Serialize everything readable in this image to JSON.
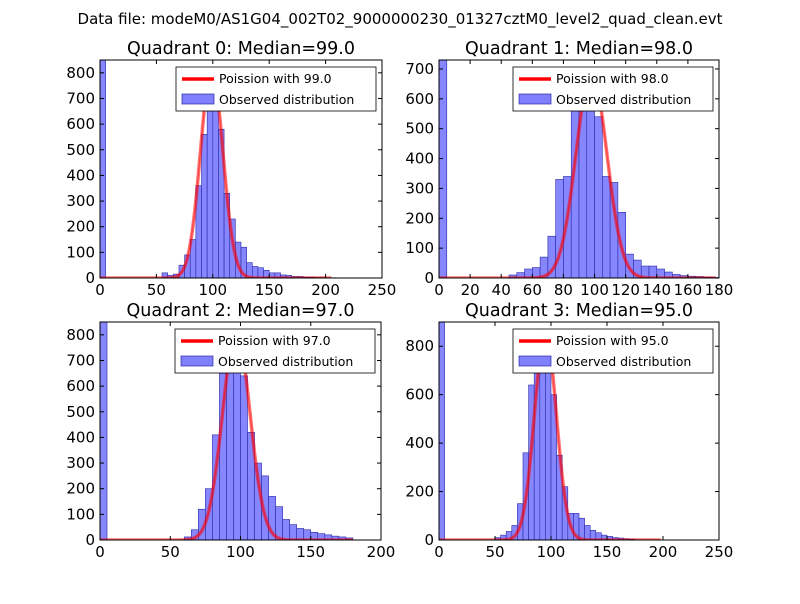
{
  "suptitle": "Data file: modeM0/AS1G04_002T02_9000000230_01327cztM0_level2_quad_clean.evt",
  "colors": {
    "hist_fill": "#8080ff",
    "hist_edge": "#2a2aa8",
    "poisson": "#ff0000",
    "axis": "#000000"
  },
  "chart_data": [
    {
      "type": "bar",
      "title": "Quadrant 0: Median=99.0",
      "legend": [
        "Poission with 99.0",
        "Observed distribution"
      ],
      "legend_position": "top-right",
      "xlim": [
        0,
        250
      ],
      "ylim": [
        0,
        850
      ],
      "xticks": [
        0,
        50,
        100,
        150,
        200,
        250
      ],
      "yticks": [
        0,
        100,
        200,
        300,
        400,
        500,
        600,
        700,
        800
      ],
      "hist": {
        "x": [
          0,
          55,
          60,
          65,
          70,
          75,
          80,
          85,
          90,
          95,
          100,
          105,
          110,
          115,
          120,
          125,
          130,
          135,
          140,
          145,
          150,
          155,
          160,
          165,
          170,
          175,
          180,
          185,
          190,
          195,
          200,
          205
        ],
        "width": 5,
        "values": [
          850,
          20,
          10,
          15,
          50,
          90,
          150,
          360,
          560,
          810,
          740,
          580,
          330,
          230,
          140,
          120,
          60,
          45,
          40,
          30,
          20,
          20,
          12,
          10,
          6,
          6,
          3,
          3,
          2,
          2,
          1,
          1
        ]
      },
      "poisson": {
        "mean": 99.0,
        "peak": 815,
        "x_range": [
          0,
          205
        ]
      }
    },
    {
      "type": "bar",
      "title": "Quadrant 1: Median=98.0",
      "legend": [
        "Poission with 98.0",
        "Observed distribution"
      ],
      "legend_position": "top-right",
      "xlim": [
        0,
        180
      ],
      "ylim": [
        0,
        730
      ],
      "xticks": [
        0,
        20,
        40,
        60,
        80,
        100,
        120,
        140,
        160,
        180
      ],
      "yticks": [
        0,
        100,
        200,
        300,
        400,
        500,
        600,
        700
      ],
      "hist": {
        "x": [
          0,
          45,
          50,
          55,
          60,
          65,
          70,
          75,
          80,
          85,
          90,
          95,
          100,
          105,
          110,
          115,
          120,
          125,
          130,
          135,
          140,
          145,
          150,
          155,
          160,
          165,
          170,
          175
        ],
        "width": 5,
        "values": [
          730,
          10,
          18,
          30,
          35,
          70,
          140,
          330,
          340,
          600,
          690,
          650,
          540,
          340,
          320,
          220,
          80,
          60,
          40,
          40,
          30,
          20,
          12,
          8,
          6,
          5,
          3,
          2
        ]
      },
      "poisson": {
        "mean": 98.0,
        "peak": 690,
        "x_range": [
          0,
          178
        ]
      }
    },
    {
      "type": "bar",
      "title": "Quadrant 2: Median=97.0",
      "legend": [
        "Poission with 97.0",
        "Observed distribution"
      ],
      "legend_position": "top-right",
      "xlim": [
        0,
        200
      ],
      "ylim": [
        0,
        850
      ],
      "xticks": [
        0,
        50,
        100,
        150,
        200
      ],
      "yticks": [
        0,
        100,
        200,
        300,
        400,
        500,
        600,
        700,
        800
      ],
      "hist": {
        "x": [
          0,
          60,
          65,
          70,
          75,
          80,
          85,
          90,
          95,
          100,
          105,
          110,
          115,
          120,
          125,
          130,
          135,
          140,
          145,
          150,
          155,
          160,
          165,
          170,
          175
        ],
        "width": 5,
        "values": [
          850,
          12,
          40,
          120,
          200,
          410,
          650,
          760,
          760,
          640,
          420,
          300,
          250,
          170,
          130,
          80,
          60,
          45,
          40,
          30,
          25,
          20,
          15,
          12,
          8
        ]
      },
      "poisson": {
        "mean": 97.0,
        "peak": 810,
        "x_range": [
          0,
          180
        ]
      }
    },
    {
      "type": "bar",
      "title": "Quadrant 3: Median=95.0",
      "legend": [
        "Poission with 95.0",
        "Observed distribution"
      ],
      "legend_position": "top-right",
      "xlim": [
        0,
        250
      ],
      "ylim": [
        0,
        900
      ],
      "xticks": [
        0,
        50,
        100,
        150,
        200,
        250
      ],
      "yticks": [
        0,
        200,
        400,
        600,
        800
      ],
      "hist": {
        "x": [
          0,
          50,
          55,
          60,
          65,
          70,
          75,
          80,
          85,
          90,
          95,
          100,
          105,
          110,
          115,
          120,
          125,
          130,
          135,
          140,
          145,
          150,
          155,
          160,
          165,
          170
        ],
        "width": 5,
        "values": [
          900,
          10,
          20,
          35,
          60,
          150,
          360,
          640,
          700,
          870,
          770,
          600,
          350,
          220,
          110,
          110,
          90,
          60,
          40,
          30,
          20,
          15,
          10,
          8,
          5,
          3
        ]
      },
      "poisson": {
        "mean": 95.0,
        "peak": 860,
        "x_range": [
          0,
          198
        ]
      }
    }
  ]
}
